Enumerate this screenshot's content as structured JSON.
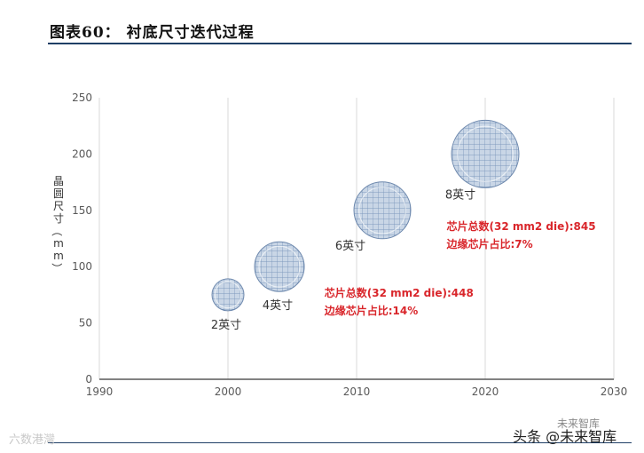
{
  "header": {
    "title": "图表60：  衬底尺寸迭代过程"
  },
  "watermarks": {
    "left": "六数港灣",
    "right": "头条 @未来智库",
    "right_top": "未来智库"
  },
  "chart_data": {
    "type": "bubble",
    "title": "",
    "xlabel": "",
    "ylabel": "晶圆尺寸（mm）",
    "xlim": [
      1990,
      2030
    ],
    "ylim": [
      0,
      250
    ],
    "xticks": [
      1990,
      2000,
      2010,
      2020,
      2030
    ],
    "yticks": [
      0,
      50,
      100,
      150,
      200,
      250
    ],
    "grid": "vertical",
    "points": [
      {
        "x": 2000,
        "y": 75,
        "label": "2英寸",
        "size": 1
      },
      {
        "x": 2004,
        "y": 100,
        "label": "4英寸",
        "size": 2
      },
      {
        "x": 2012,
        "y": 150,
        "label": "6英寸",
        "size": 3
      },
      {
        "x": 2020,
        "y": 200,
        "label": "8英寸",
        "size": 4
      }
    ],
    "annotations": [
      {
        "line1": "芯片总数(32 mm2 die):448",
        "line2": "边缘芯片占比:14%"
      },
      {
        "line1": "芯片总数(32 mm2 die):845",
        "line2": "边缘芯片占比:7%"
      }
    ],
    "colors": {
      "bubble": "#a9bdd6",
      "bubble_line": "#6d88ad",
      "annotation": "#d9262b",
      "axis": "#595959"
    }
  }
}
